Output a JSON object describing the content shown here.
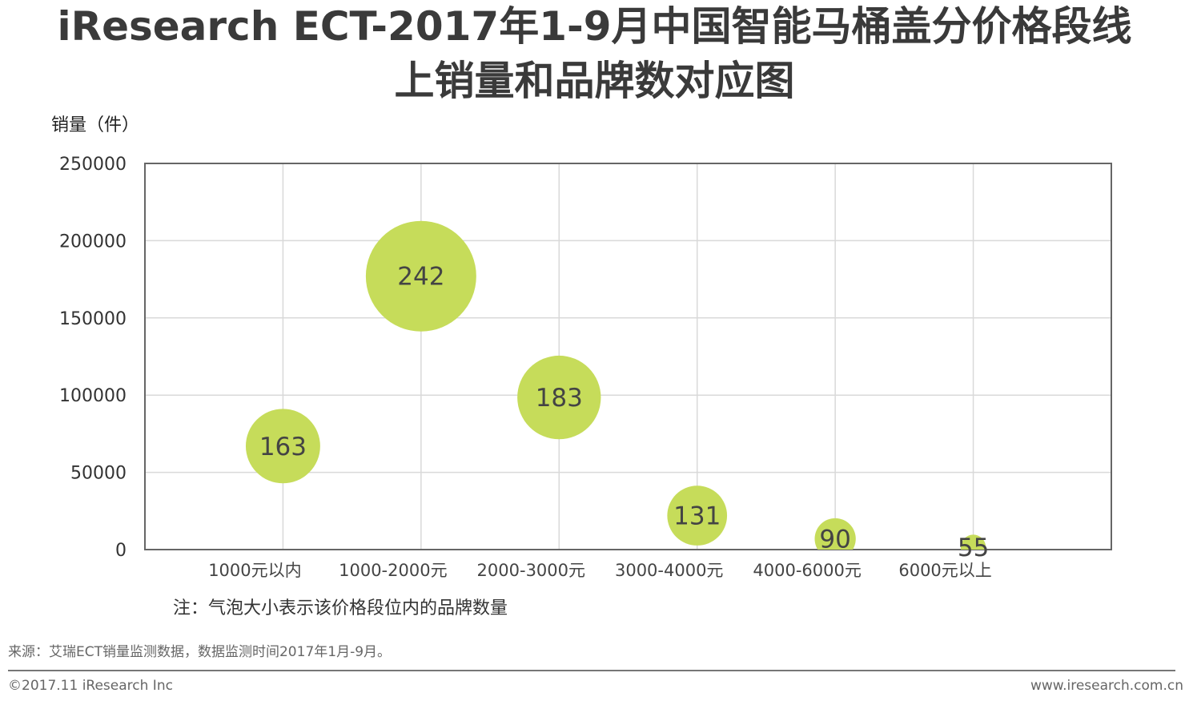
{
  "title_line1": "iResearch ECT-2017年1-9月中国智能马桶盖分价格段线",
  "title_line2": "上销量和品牌数对应图",
  "note": "注：气泡大小表示该价格段位内的品牌数量",
  "source": "来源：艾瑞ECT销量监测数据，数据监测时间2017年1月-9月。",
  "copyright": "©2017.11 iResearch Inc",
  "website": "www.iresearch.com.cn",
  "chart_data": {
    "type": "bubble",
    "title": "iResearch ECT-2017年1-9月中国智能马桶盖分价格段线上销量和品牌数对应图",
    "ylabel": "销量（件）",
    "xlabel": "",
    "ylim": [
      0,
      250000
    ],
    "yticks": [
      "0",
      "50000",
      "100000",
      "150000",
      "200000",
      "250000"
    ],
    "grid": true,
    "categories": [
      "1000元以内",
      "1000-2000元",
      "2000-3000元",
      "3000-4000元",
      "4000-6000元",
      "6000元以上"
    ],
    "values": [
      67000,
      177000,
      98500,
      22000,
      7000,
      1500
    ],
    "bubble_sizes": [
      163,
      242,
      183,
      131,
      90,
      55
    ],
    "bubble_color": "#c6dc5a"
  }
}
